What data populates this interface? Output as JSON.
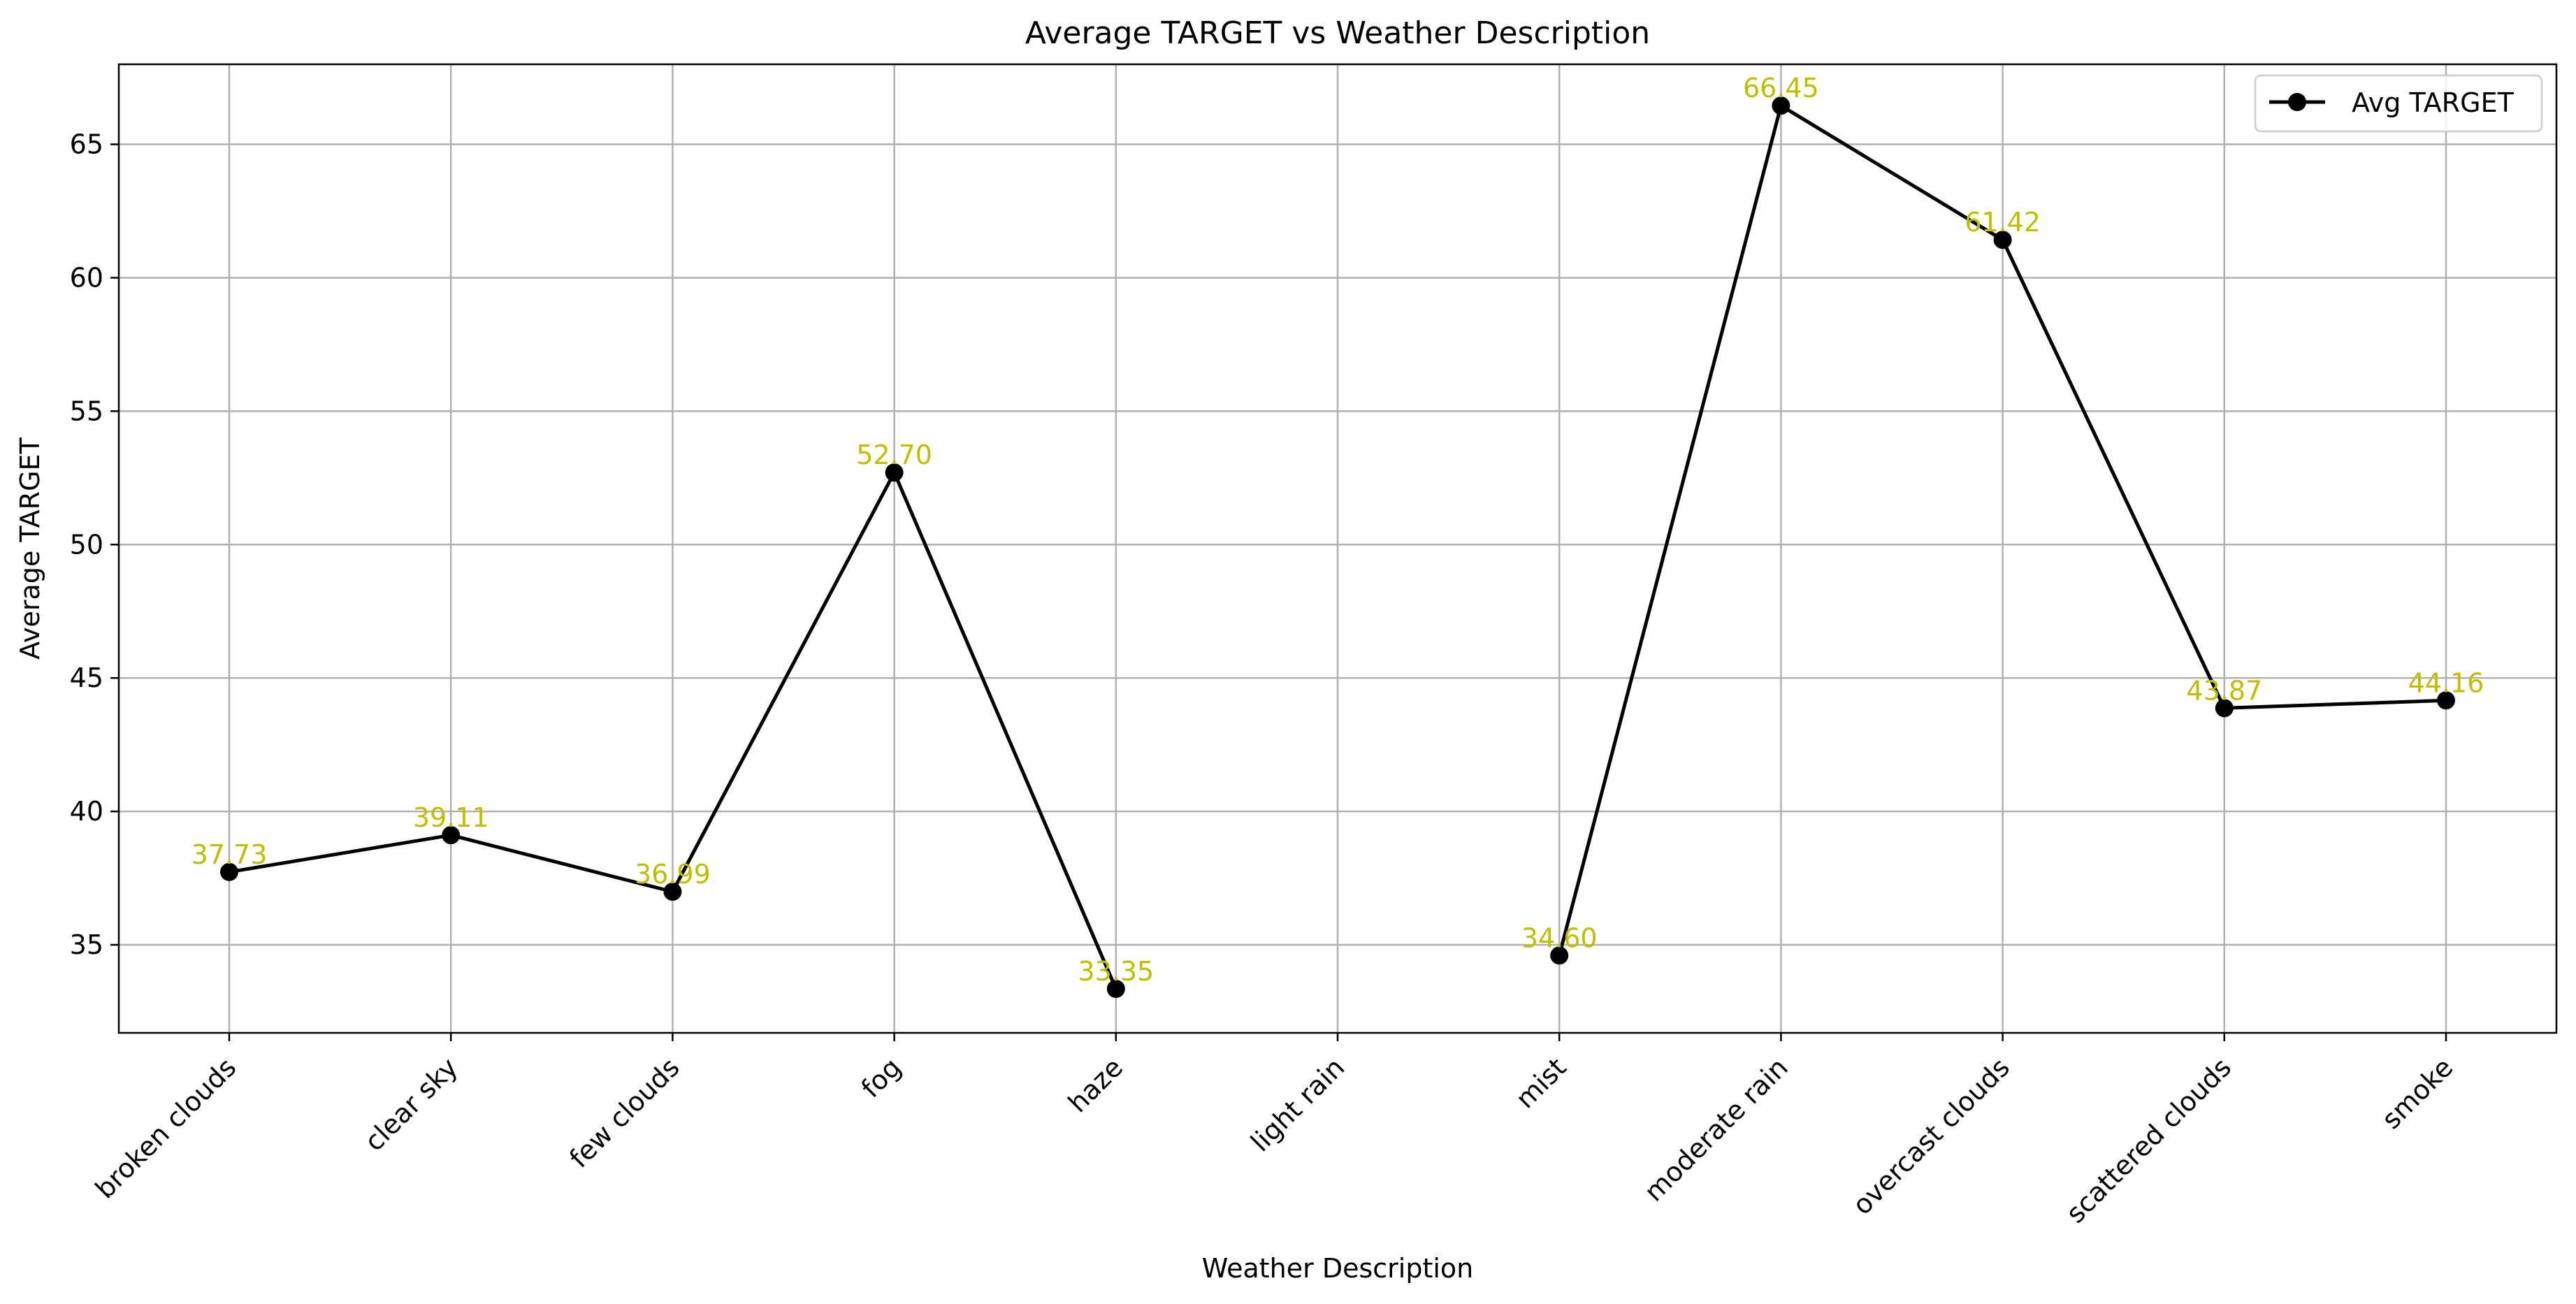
{
  "chart_data": {
    "type": "line",
    "title": "Average TARGET vs Weather Description",
    "xlabel": "Weather Description",
    "ylabel": "Average TARGET",
    "categories": [
      "broken clouds",
      "clear sky",
      "few clouds",
      "fog",
      "haze",
      "light rain",
      "mist",
      "moderate rain",
      "overcast clouds",
      "scattered clouds",
      "smoke"
    ],
    "series": [
      {
        "name": "Avg TARGET",
        "values": [
          37.73,
          39.11,
          36.99,
          52.7,
          33.35,
          null,
          34.6,
          66.45,
          61.42,
          43.87,
          44.16
        ],
        "labels": [
          "37.73",
          "39.11",
          "36.99",
          "52.70",
          "33.35",
          null,
          "34.60",
          "66.45",
          "61.42",
          "43.87",
          "44.16"
        ]
      }
    ],
    "yticks": [
      "35",
      "40",
      "45",
      "50",
      "55",
      "60",
      "65"
    ],
    "ylim": [
      31.7,
      68.0
    ],
    "grid": true,
    "legend": "top-right",
    "colors": {
      "line": "#000000",
      "marker": "#000000",
      "data_label": "#bfbf00",
      "grid": "#b0b0b0"
    }
  }
}
